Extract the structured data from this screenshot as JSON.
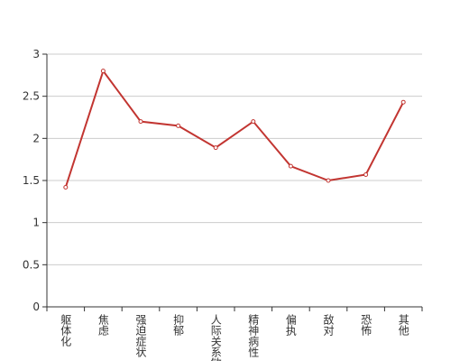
{
  "chart_data": {
    "type": "line",
    "categories": [
      "躯体化",
      "焦虑",
      "强迫症状",
      "抑郁",
      "人际关系敏感",
      "精神病性",
      "偏执",
      "敌对",
      "恐怖",
      "其他"
    ],
    "values": [
      1.42,
      2.8,
      2.2,
      2.15,
      1.89,
      2.2,
      1.67,
      1.5,
      1.57,
      2.43
    ],
    "color": "#c23531",
    "ylim": [
      0,
      3
    ],
    "yticks": [
      0,
      0.5,
      1,
      1.5,
      2,
      2.5,
      3
    ],
    "grid": true
  }
}
